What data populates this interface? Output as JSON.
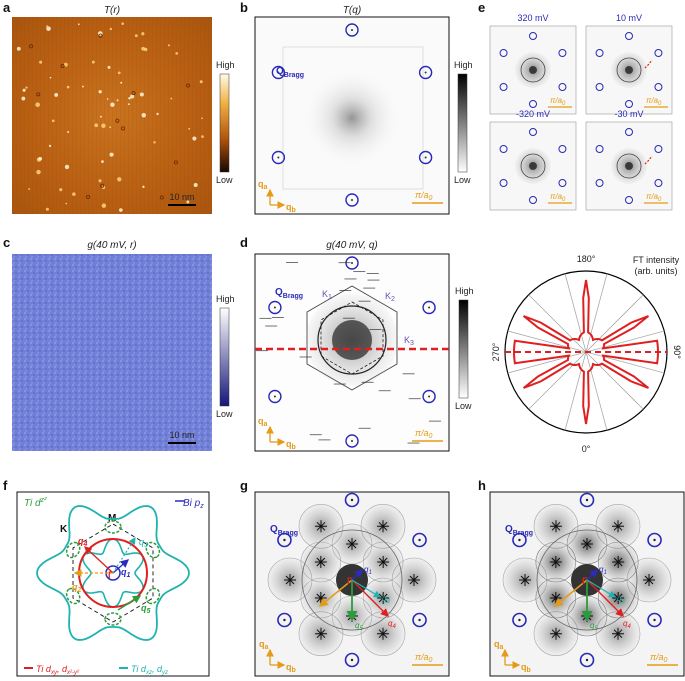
{
  "panels": {
    "a": {
      "label": "a",
      "title": "T(r)",
      "cb_high": "High",
      "cb_low": "Low",
      "scale": "10 nm"
    },
    "b": {
      "label": "b",
      "title": "T(q)",
      "bragg": "Q",
      "bragg_sub": "Bragg",
      "cb_high": "High",
      "cb_low": "Low",
      "qa": "q",
      "qa_sub": "a",
      "qb": "q",
      "qb_sub": "b",
      "pi_a0": "π/a",
      "pi_sub": "0"
    },
    "c": {
      "label": "c",
      "title": "g(40 mV, r)",
      "cb_high": "High",
      "cb_low": "Low",
      "scale": "10 nm"
    },
    "d": {
      "label": "d",
      "title": "g(40 mV, q)",
      "bragg": "Q",
      "bragg_sub": "Bragg",
      "cb_high": "High",
      "cb_low": "Low",
      "k1": "K",
      "k1_sub": "1",
      "k2": "K",
      "k2_sub": "2",
      "k3": "K",
      "k3_sub": "3",
      "qa": "q",
      "qa_sub": "a",
      "qb": "q",
      "qb_sub": "b",
      "pi_a0": "π/a",
      "pi_sub": "0"
    },
    "polar": {
      "title_1": "FT intensity",
      "title_2": "(arb. units)",
      "top": "180°",
      "bottom": "0°",
      "left": "270°",
      "right": "90°"
    },
    "e": {
      "label": "e",
      "sub_titles": [
        "320 mV",
        "10 mV",
        "-320 mV",
        "-30 mV"
      ],
      "pi_a0": "π/a",
      "pi_sub": "0"
    },
    "f": {
      "label": "f",
      "ti_dz2": "Ti d",
      "ti_dz2_sub": "z²",
      "bi_pz": "Bi p",
      "bi_pz_sub": "z",
      "K": "K",
      "M": "M",
      "gamma": "Γ",
      "q1": "q",
      "q1_sub": "1",
      "q2": "q",
      "q2_sub": "2",
      "q3": "q",
      "q3_sub": "3",
      "q4": "q",
      "q4_sub": "4",
      "q5": "q",
      "q5_sub": "5",
      "legend_red": "Ti d",
      "legend_red_sub": "xy",
      "legend_red_2": ", d",
      "legend_red_sub2": "x²-y²",
      "legend_cyan": "Ti d",
      "legend_cyan_sub": "xz",
      "legend_cyan_2": ", d",
      "legend_cyan_sub2": "yz"
    },
    "g": {
      "label": "g",
      "bragg": "Q",
      "bragg_sub": "Bragg",
      "qa": "q",
      "qa_sub": "a",
      "qb": "q",
      "qb_sub": "b",
      "pi_a0": "π/a",
      "pi_sub": "0",
      "q1": "q",
      "q1_sub": "1",
      "q3": "q",
      "q3_sub": "3",
      "q4": "q",
      "q4_sub": "4",
      "q5": "q",
      "q5_sub": "5"
    },
    "h": {
      "label": "h",
      "bragg": "Q",
      "bragg_sub": "Bragg",
      "qa": "q",
      "qa_sub": "a",
      "qb": "q",
      "qb_sub": "b",
      "pi_a0": "π/a",
      "pi_sub": "0",
      "q1": "q",
      "q1_sub": "1",
      "q3": "q",
      "q3_sub": "3",
      "q4": "q",
      "q4_sub": "4",
      "q5": "q",
      "q5_sub": "5"
    }
  },
  "colors": {
    "orange": "#e49b18",
    "blue_circle": "#2929b8",
    "red": "#e02020",
    "cyan": "#1fb3b0",
    "green": "#2a9d3b",
    "copper": "#c8701f",
    "blue_map": "#6c7bd8"
  }
}
